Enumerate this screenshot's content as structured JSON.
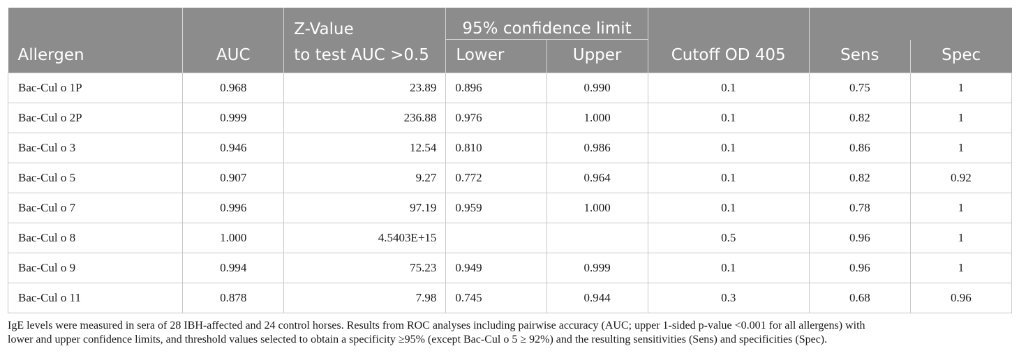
{
  "table": {
    "headers": {
      "allergen": "Allergen",
      "auc": "AUC",
      "z_value_line1": "Z-Value",
      "z_value_line2": "to test AUC >0.5",
      "ci_group": "95% confidence limit",
      "lower": "Lower",
      "upper": "Upper",
      "cutoff": "Cutoff OD 405",
      "sens": "Sens",
      "spec": "Spec"
    },
    "rows": [
      {
        "allergen": "Bac-Cul o 1P",
        "auc": "0.968",
        "z": "23.89",
        "lower": "0.896",
        "upper": "0.990",
        "cutoff": "0.1",
        "sens": "0.75",
        "spec": "1"
      },
      {
        "allergen": "Bac-Cul o 2P",
        "auc": "0.999",
        "z": "236.88",
        "lower": "0.976",
        "upper": "1.000",
        "cutoff": "0.1",
        "sens": "0.82",
        "spec": "1"
      },
      {
        "allergen": "Bac-Cul o 3",
        "auc": "0.946",
        "z": "12.54",
        "lower": "0.810",
        "upper": "0.986",
        "cutoff": "0.1",
        "sens": "0.86",
        "spec": "1"
      },
      {
        "allergen": "Bac-Cul o 5",
        "auc": "0.907",
        "z": "9.27",
        "lower": "0.772",
        "upper": "0.964",
        "cutoff": "0.1",
        "sens": "0.82",
        "spec": "0.92"
      },
      {
        "allergen": "Bac-Cul o 7",
        "auc": "0.996",
        "z": "97.19",
        "lower": "0.959",
        "upper": "1.000",
        "cutoff": "0.1",
        "sens": "0.78",
        "spec": "1"
      },
      {
        "allergen": "Bac-Cul o 8",
        "auc": "1.000",
        "z": "4.5403E+15",
        "lower": "",
        "upper": "",
        "cutoff": "0.5",
        "sens": "0.96",
        "spec": "1"
      },
      {
        "allergen": "Bac-Cul o 9",
        "auc": "0.994",
        "z": "75.23",
        "lower": "0.949",
        "upper": "0.999",
        "cutoff": "0.1",
        "sens": "0.96",
        "spec": "1"
      },
      {
        "allergen": "Bac-Cul o 11",
        "auc": "0.878",
        "z": "7.98",
        "lower": "0.745",
        "upper": "0.944",
        "cutoff": "0.3",
        "sens": "0.68",
        "spec": "0.96"
      }
    ]
  },
  "caption": {
    "line1": "IgE levels were measured in sera of 28 IBH-affected and 24 control horses. Results from ROC analyses including pairwise accuracy (AUC; upper 1-sided p-value <0.001 for all allergens) with",
    "line2": "lower and upper confidence limits, and threshold values selected to obtain a specificity ≥95% (except Bac-Cul o 5 ≥ 92%) and the resulting sensitivities (Sens) and specificities (Spec)."
  },
  "colors": {
    "header_bg": "#8c8c8c",
    "header_text": "#ffffff",
    "grid": "#c8c8c8"
  }
}
